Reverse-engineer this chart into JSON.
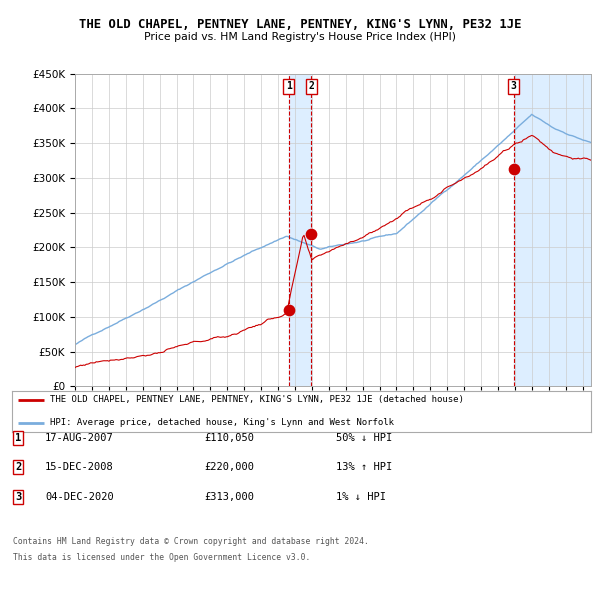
{
  "title": "THE OLD CHAPEL, PENTNEY LANE, PENTNEY, KING'S LYNN, PE32 1JE",
  "subtitle": "Price paid vs. HM Land Registry's House Price Index (HPI)",
  "legend_line1": "THE OLD CHAPEL, PENTNEY LANE, PENTNEY, KING'S LYNN, PE32 1JE (detached house)",
  "legend_line2": "HPI: Average price, detached house, King's Lynn and West Norfolk",
  "footer1": "Contains HM Land Registry data © Crown copyright and database right 2024.",
  "footer2": "This data is licensed under the Open Government Licence v3.0.",
  "transactions": [
    {
      "label": "1",
      "date": "17-AUG-2007",
      "price": 110050,
      "pct": "50%",
      "dir": "↓",
      "x_year": 2007.63
    },
    {
      "label": "2",
      "date": "15-DEC-2008",
      "price": 220000,
      "pct": "13%",
      "dir": "↑",
      "x_year": 2008.96
    },
    {
      "label": "3",
      "date": "04-DEC-2020",
      "price": 313000,
      "pct": "1%",
      "dir": "↓",
      "x_year": 2020.92
    }
  ],
  "ylim": [
    0,
    450000
  ],
  "yticks": [
    0,
    50000,
    100000,
    150000,
    200000,
    250000,
    300000,
    350000,
    400000,
    450000
  ],
  "xlim_start": 1995.0,
  "xlim_end": 2025.5,
  "background_color": "#ffffff",
  "grid_color": "#cccccc",
  "hpi_color": "#7aaddd",
  "price_color": "#cc0000",
  "vline_color": "#cc0000",
  "shade_color": "#ddeeff",
  "dot_color": "#cc0000"
}
